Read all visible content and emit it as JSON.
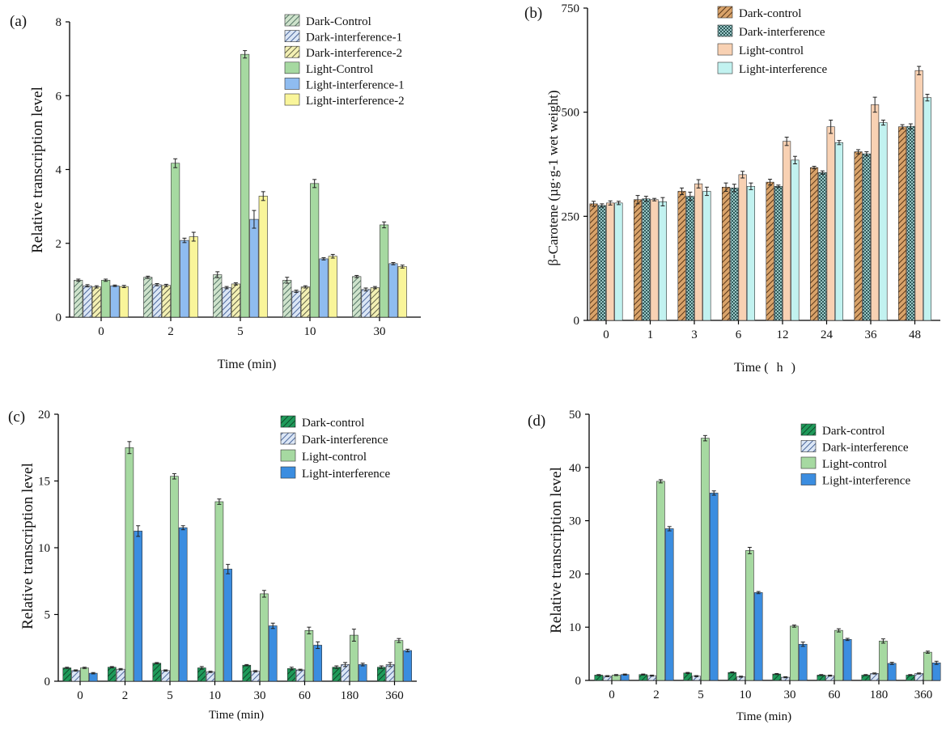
{
  "colors": {
    "dark_control_a": "#cfe3cc",
    "light_green": "#a6d9a1",
    "light_blue_a": "#8fbcf0",
    "light_yellow": "#f9f59a",
    "hatch_blue": "#2a4a86",
    "hatch_brown": "#7a4a1e",
    "brown_fill": "#d9a36a",
    "teal_fill": "#9bc7c7",
    "peach": "#f8d1b3",
    "cyan": "#c2f2f0",
    "dark_green": "#1f9a5a",
    "blue": "#3b8de0",
    "axis": "#000000"
  },
  "chart_data": [
    {
      "panel_label": "(a)",
      "type": "bar",
      "categories": [
        "0",
        "2",
        "5",
        "10",
        "30"
      ],
      "xlabel": "Time (min)",
      "ylabel": "Relative transcription level",
      "ylim": [
        0,
        8
      ],
      "yticks": [
        "0",
        "2",
        "4",
        "6",
        "8"
      ],
      "legend_position": "top-right",
      "series": [
        {
          "name": "Dark-Control",
          "style": "hatch-green",
          "values": [
            1.0,
            1.08,
            1.15,
            1.0,
            1.1
          ],
          "errors": [
            0.03,
            0.03,
            0.08,
            0.08,
            0.03
          ]
        },
        {
          "name": "Dark-interference-1",
          "style": "hatch-blue",
          "values": [
            0.85,
            0.88,
            0.8,
            0.7,
            0.75
          ],
          "errors": [
            0.03,
            0.03,
            0.03,
            0.03,
            0.04
          ]
        },
        {
          "name": "Dark-interference-2",
          "style": "hatch-yellow",
          "values": [
            0.82,
            0.86,
            0.9,
            0.82,
            0.8
          ],
          "errors": [
            0.03,
            0.03,
            0.03,
            0.03,
            0.03
          ]
        },
        {
          "name": "Light-Control",
          "style": "solid-green",
          "values": [
            1.0,
            4.17,
            7.12,
            3.62,
            2.5
          ],
          "errors": [
            0.03,
            0.12,
            0.1,
            0.11,
            0.08
          ]
        },
        {
          "name": "Light-interference-1",
          "style": "solid-blue",
          "values": [
            0.85,
            2.08,
            2.65,
            1.58,
            1.45
          ],
          "errors": [
            0.02,
            0.06,
            0.24,
            0.03,
            0.03
          ]
        },
        {
          "name": "Light-interference-2",
          "style": "solid-yellow",
          "values": [
            0.83,
            2.18,
            3.28,
            1.65,
            1.37
          ],
          "errors": [
            0.03,
            0.12,
            0.12,
            0.05,
            0.04
          ]
        }
      ]
    },
    {
      "panel_label": "(b)",
      "type": "bar",
      "categories": [
        "0",
        "1",
        "3",
        "6",
        "12",
        "24",
        "36",
        "48"
      ],
      "xlabel": "Time (",
      "xlabel_unit": "h",
      "xlabel_close": ")",
      "ylabel": "β-Carotene (µg·g-1 wet weight)",
      "ylim": [
        0,
        750
      ],
      "yticks": [
        "0",
        "250",
        "500",
        "750"
      ],
      "legend_position": "top",
      "series": [
        {
          "name": "Dark-control",
          "style": "hatch-brown",
          "values": [
            280,
            290,
            310,
            320,
            332,
            367,
            405,
            465
          ],
          "errors": [
            6,
            10,
            8,
            10,
            7,
            3,
            5,
            5
          ]
        },
        {
          "name": "Dark-interference",
          "style": "dots-teal",
          "values": [
            276,
            292,
            298,
            318,
            322,
            355,
            400,
            466
          ],
          "errors": [
            4,
            6,
            10,
            9,
            3,
            4,
            5,
            6
          ]
        },
        {
          "name": "Light-control",
          "style": "solid-peach",
          "values": [
            282,
            290,
            328,
            350,
            430,
            465,
            518,
            600
          ],
          "errors": [
            5,
            3,
            10,
            8,
            10,
            16,
            18,
            10
          ]
        },
        {
          "name": "Light-interference",
          "style": "solid-cyan",
          "values": [
            282,
            285,
            310,
            322,
            385,
            427,
            475,
            535
          ],
          "errors": [
            4,
            10,
            10,
            8,
            9,
            5,
            6,
            8
          ]
        }
      ]
    },
    {
      "panel_label": "(c)",
      "type": "bar",
      "categories": [
        "0",
        "2",
        "5",
        "10",
        "30",
        "60",
        "180",
        "360"
      ],
      "xlabel": "Time (min)",
      "ylabel": "Relative transcription level",
      "ylim": [
        0,
        20
      ],
      "yticks": [
        "0",
        "5",
        "10",
        "15",
        "20"
      ],
      "legend_position": "top-right",
      "series": [
        {
          "name": "Dark-control",
          "style": "hatch-darkgreen",
          "values": [
            1.0,
            1.05,
            1.35,
            1.0,
            1.2,
            0.95,
            1.05,
            1.05
          ],
          "errors": [
            0.05,
            0.05,
            0.05,
            0.1,
            0.05,
            0.1,
            0.1,
            0.1
          ]
        },
        {
          "name": "Dark-interference",
          "style": "hatch-blue",
          "values": [
            0.8,
            0.9,
            0.8,
            0.7,
            0.75,
            0.85,
            1.25,
            1.25
          ],
          "errors": [
            0.05,
            0.05,
            0.05,
            0.05,
            0.05,
            0.05,
            0.15,
            0.15
          ]
        },
        {
          "name": "Light-control",
          "style": "solid-lightgreen",
          "values": [
            1.0,
            17.5,
            15.35,
            13.45,
            6.55,
            3.8,
            3.45,
            3.05
          ],
          "errors": [
            0.05,
            0.45,
            0.2,
            0.2,
            0.25,
            0.25,
            0.45,
            0.15
          ]
        },
        {
          "name": "Light-interference",
          "style": "solid-blue",
          "values": [
            0.6,
            11.25,
            11.5,
            8.4,
            4.15,
            2.7,
            1.25,
            2.3
          ],
          "errors": [
            0.05,
            0.4,
            0.15,
            0.35,
            0.2,
            0.25,
            0.1,
            0.1
          ]
        }
      ]
    },
    {
      "panel_label": "(d)",
      "type": "bar",
      "categories": [
        "0",
        "2",
        "5",
        "10",
        "30",
        "60",
        "180",
        "360"
      ],
      "xlabel": "Time (min)",
      "ylabel": "Relative transcription level",
      "ylim": [
        0,
        50
      ],
      "yticks": [
        "0",
        "10",
        "20",
        "30",
        "40",
        "50"
      ],
      "legend_position": "top-right",
      "series": [
        {
          "name": "Dark-control",
          "style": "hatch-darkgreen",
          "values": [
            1.0,
            1.1,
            1.4,
            1.5,
            1.2,
            1.0,
            1.0,
            1.0
          ],
          "errors": [
            0.1,
            0.1,
            0.1,
            0.1,
            0.1,
            0.1,
            0.1,
            0.1
          ]
        },
        {
          "name": "Dark-interference",
          "style": "hatch-blue",
          "values": [
            0.8,
            0.9,
            0.8,
            0.7,
            0.6,
            0.9,
            1.3,
            1.3
          ],
          "errors": [
            0.1,
            0.1,
            0.1,
            0.1,
            0.1,
            0.1,
            0.1,
            0.1
          ]
        },
        {
          "name": "Light-control",
          "style": "solid-lightgreen",
          "values": [
            1.0,
            37.4,
            45.5,
            24.4,
            10.2,
            9.4,
            7.4,
            5.3
          ],
          "errors": [
            0.1,
            0.3,
            0.5,
            0.6,
            0.2,
            0.3,
            0.4,
            0.2
          ]
        },
        {
          "name": "Light-interference",
          "style": "solid-blue",
          "values": [
            1.1,
            28.5,
            35.2,
            16.5,
            6.8,
            7.7,
            3.2,
            3.3
          ],
          "errors": [
            0.1,
            0.4,
            0.4,
            0.2,
            0.4,
            0.2,
            0.2,
            0.3
          ]
        }
      ]
    }
  ]
}
